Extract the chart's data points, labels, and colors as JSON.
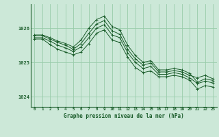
{
  "title": "Graphe pression niveau de la mer (hPa)",
  "background_color": "#cce8d8",
  "plot_bg_color": "#cce8d8",
  "grid_color": "#99ccaa",
  "line_color": "#1a5c2a",
  "x_labels": [
    "0",
    "1",
    "2",
    "3",
    "4",
    "5",
    "6",
    "7",
    "8",
    "9",
    "10",
    "11",
    "12",
    "13",
    "14",
    "15",
    "16",
    "17",
    "18",
    "19",
    "20",
    "21",
    "22",
    "23"
  ],
  "ylim": [
    1023.7,
    1026.7
  ],
  "yticks": [
    1024,
    1025,
    1026
  ],
  "series": [
    [
      1025.8,
      1025.8,
      1025.72,
      1025.62,
      1025.55,
      1025.45,
      1025.65,
      1026.0,
      1026.25,
      1026.35,
      1026.05,
      1025.95,
      1025.5,
      1025.2,
      1025.0,
      1025.05,
      1024.78,
      1024.78,
      1024.82,
      1024.78,
      1024.68,
      1024.42,
      1024.52,
      1024.47
    ],
    [
      1025.78,
      1025.78,
      1025.68,
      1025.58,
      1025.5,
      1025.38,
      1025.55,
      1025.85,
      1026.12,
      1026.22,
      1025.92,
      1025.82,
      1025.38,
      1025.1,
      1024.92,
      1024.98,
      1024.72,
      1024.72,
      1024.76,
      1024.72,
      1024.62,
      1024.55,
      1024.62,
      1024.52
    ],
    [
      1025.72,
      1025.72,
      1025.62,
      1025.5,
      1025.42,
      1025.32,
      1025.45,
      1025.72,
      1026.0,
      1026.1,
      1025.8,
      1025.72,
      1025.28,
      1025.0,
      1024.82,
      1024.88,
      1024.65,
      1024.65,
      1024.7,
      1024.65,
      1024.55,
      1024.38,
      1024.45,
      1024.4
    ],
    [
      1025.68,
      1025.68,
      1025.52,
      1025.38,
      1025.3,
      1025.22,
      1025.3,
      1025.55,
      1025.85,
      1025.95,
      1025.65,
      1025.58,
      1025.15,
      1024.85,
      1024.7,
      1024.75,
      1024.58,
      1024.58,
      1024.62,
      1024.58,
      1024.48,
      1024.22,
      1024.32,
      1024.28
    ]
  ]
}
